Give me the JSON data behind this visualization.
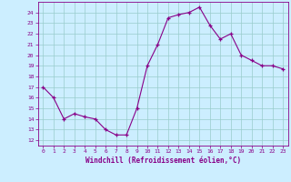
{
  "x": [
    0,
    1,
    2,
    3,
    4,
    5,
    6,
    7,
    8,
    9,
    10,
    11,
    12,
    13,
    14,
    15,
    16,
    17,
    18,
    19,
    20,
    21,
    22,
    23
  ],
  "y": [
    17.0,
    16.0,
    14.0,
    14.5,
    14.2,
    14.0,
    13.0,
    12.5,
    12.5,
    15.0,
    19.0,
    21.0,
    23.5,
    23.8,
    24.0,
    24.5,
    22.8,
    21.5,
    22.0,
    20.0,
    19.5,
    19.0,
    19.0,
    18.7
  ],
  "xlim": [
    -0.5,
    23.5
  ],
  "ylim": [
    11.5,
    25.0
  ],
  "yticks": [
    12,
    13,
    14,
    15,
    16,
    17,
    18,
    19,
    20,
    21,
    22,
    23,
    24
  ],
  "xticks": [
    0,
    1,
    2,
    3,
    4,
    5,
    6,
    7,
    8,
    9,
    10,
    11,
    12,
    13,
    14,
    15,
    16,
    17,
    18,
    19,
    20,
    21,
    22,
    23
  ],
  "xlabel": "Windchill (Refroidissement éolien,°C)",
  "line_color": "#880088",
  "marker": "+",
  "bg_color": "#cceeff",
  "grid_color": "#99cccc",
  "tick_color": "#880088",
  "label_color": "#880088",
  "tick_fontsize": 4.5,
  "xlabel_fontsize": 5.5
}
